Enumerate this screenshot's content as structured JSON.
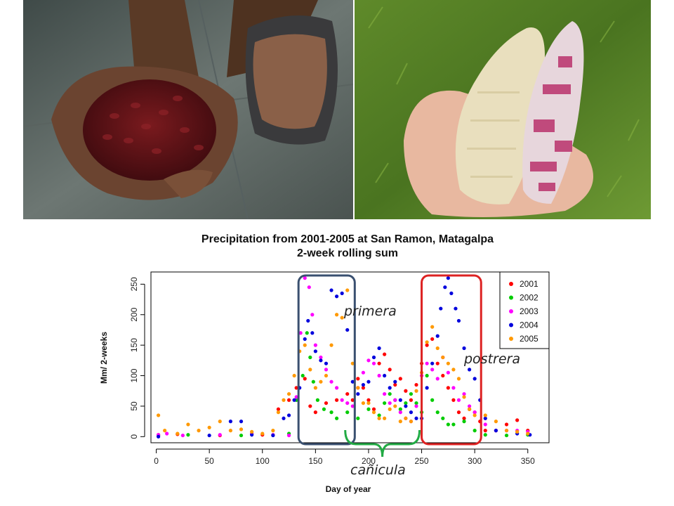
{
  "photos": [
    {
      "name": "beans-photo",
      "subject": "hands-holding-red-beans"
    },
    {
      "name": "corn-photo",
      "subject": "hand-holding-two-corn-cobs"
    }
  ],
  "chart_data": {
    "type": "scatter",
    "title": "Precipitation from 2001-2005 at San Ramon, Matagalpa",
    "subtitle": "2-week rolling sum",
    "xlabel": "Day of year",
    "ylabel": "Mm/ 2-weeks",
    "xlim": [
      -5,
      370
    ],
    "ylim": [
      -10,
      270
    ],
    "xticks": [
      0,
      50,
      100,
      150,
      200,
      250,
      300,
      350
    ],
    "yticks": [
      0,
      50,
      100,
      150,
      200,
      250
    ],
    "grid": false,
    "legend_position": "top-right",
    "series": [
      {
        "name": "2001",
        "color": "#ff0000",
        "points": [
          [
            2,
            3
          ],
          [
            20,
            4
          ],
          [
            60,
            2
          ],
          [
            100,
            3
          ],
          [
            115,
            45
          ],
          [
            125,
            60
          ],
          [
            132,
            80
          ],
          [
            140,
            95
          ],
          [
            145,
            50
          ],
          [
            150,
            40
          ],
          [
            160,
            55
          ],
          [
            170,
            60
          ],
          [
            180,
            70
          ],
          [
            185,
            60
          ],
          [
            190,
            95
          ],
          [
            195,
            80
          ],
          [
            200,
            60
          ],
          [
            205,
            45
          ],
          [
            210,
            120
          ],
          [
            215,
            135
          ],
          [
            220,
            110
          ],
          [
            225,
            85
          ],
          [
            230,
            95
          ],
          [
            235,
            75
          ],
          [
            240,
            60
          ],
          [
            245,
            85
          ],
          [
            250,
            120
          ],
          [
            255,
            150
          ],
          [
            260,
            160
          ],
          [
            265,
            120
          ],
          [
            270,
            100
          ],
          [
            275,
            80
          ],
          [
            280,
            60
          ],
          [
            285,
            40
          ],
          [
            290,
            30
          ],
          [
            295,
            45
          ],
          [
            300,
            40
          ],
          [
            305,
            25
          ],
          [
            310,
            10
          ],
          [
            320,
            10
          ],
          [
            330,
            20
          ],
          [
            340,
            27
          ],
          [
            350,
            10
          ]
        ]
      },
      {
        "name": "2002",
        "color": "#00cc00",
        "points": [
          [
            2,
            2
          ],
          [
            30,
            3
          ],
          [
            80,
            2
          ],
          [
            110,
            3
          ],
          [
            125,
            5
          ],
          [
            132,
            60
          ],
          [
            138,
            100
          ],
          [
            142,
            170
          ],
          [
            145,
            130
          ],
          [
            148,
            90
          ],
          [
            152,
            60
          ],
          [
            158,
            45
          ],
          [
            165,
            40
          ],
          [
            170,
            30
          ],
          [
            180,
            40
          ],
          [
            190,
            30
          ],
          [
            200,
            45
          ],
          [
            210,
            35
          ],
          [
            215,
            55
          ],
          [
            220,
            70
          ],
          [
            225,
            60
          ],
          [
            230,
            45
          ],
          [
            235,
            55
          ],
          [
            240,
            70
          ],
          [
            245,
            55
          ],
          [
            250,
            40
          ],
          [
            255,
            100
          ],
          [
            260,
            60
          ],
          [
            265,
            40
          ],
          [
            270,
            30
          ],
          [
            275,
            20
          ],
          [
            280,
            20
          ],
          [
            290,
            25
          ],
          [
            300,
            10
          ],
          [
            310,
            3
          ],
          [
            330,
            2
          ],
          [
            350,
            3
          ]
        ]
      },
      {
        "name": "2003",
        "color": "#ff00ff",
        "points": [
          [
            2,
            3
          ],
          [
            10,
            5
          ],
          [
            25,
            2
          ],
          [
            60,
            3
          ],
          [
            90,
            5
          ],
          [
            110,
            3
          ],
          [
            125,
            2
          ],
          [
            132,
            65
          ],
          [
            136,
            170
          ],
          [
            140,
            260
          ],
          [
            144,
            245
          ],
          [
            147,
            200
          ],
          [
            150,
            150
          ],
          [
            155,
            130
          ],
          [
            160,
            110
          ],
          [
            165,
            90
          ],
          [
            170,
            80
          ],
          [
            175,
            60
          ],
          [
            180,
            55
          ],
          [
            185,
            50
          ],
          [
            190,
            80
          ],
          [
            195,
            105
          ],
          [
            200,
            125
          ],
          [
            205,
            120
          ],
          [
            210,
            100
          ],
          [
            215,
            70
          ],
          [
            220,
            55
          ],
          [
            225,
            60
          ],
          [
            230,
            40
          ],
          [
            235,
            30
          ],
          [
            240,
            25
          ],
          [
            245,
            50
          ],
          [
            250,
            100
          ],
          [
            255,
            120
          ],
          [
            260,
            110
          ],
          [
            265,
            95
          ],
          [
            270,
            130
          ],
          [
            275,
            105
          ],
          [
            280,
            80
          ],
          [
            285,
            60
          ],
          [
            290,
            70
          ],
          [
            295,
            50
          ],
          [
            300,
            40
          ],
          [
            310,
            20
          ],
          [
            320,
            10
          ],
          [
            330,
            10
          ],
          [
            340,
            10
          ],
          [
            350,
            8
          ]
        ]
      },
      {
        "name": "2004",
        "color": "#0000dd",
        "points": [
          [
            2,
            0
          ],
          [
            50,
            2
          ],
          [
            70,
            25
          ],
          [
            80,
            25
          ],
          [
            90,
            3
          ],
          [
            110,
            2
          ],
          [
            120,
            30
          ],
          [
            125,
            35
          ],
          [
            130,
            60
          ],
          [
            135,
            80
          ],
          [
            140,
            160
          ],
          [
            143,
            190
          ],
          [
            147,
            170
          ],
          [
            150,
            140
          ],
          [
            155,
            125
          ],
          [
            160,
            120
          ],
          [
            165,
            240
          ],
          [
            170,
            230
          ],
          [
            175,
            235
          ],
          [
            180,
            175
          ],
          [
            185,
            90
          ],
          [
            190,
            70
          ],
          [
            195,
            85
          ],
          [
            200,
            90
          ],
          [
            205,
            130
          ],
          [
            210,
            145
          ],
          [
            215,
            100
          ],
          [
            220,
            80
          ],
          [
            225,
            90
          ],
          [
            230,
            60
          ],
          [
            235,
            50
          ],
          [
            240,
            40
          ],
          [
            245,
            30
          ],
          [
            250,
            30
          ],
          [
            255,
            80
          ],
          [
            260,
            120
          ],
          [
            265,
            165
          ],
          [
            268,
            210
          ],
          [
            272,
            245
          ],
          [
            275,
            260
          ],
          [
            278,
            235
          ],
          [
            282,
            210
          ],
          [
            285,
            190
          ],
          [
            290,
            145
          ],
          [
            295,
            110
          ],
          [
            300,
            95
          ],
          [
            305,
            60
          ],
          [
            310,
            30
          ],
          [
            320,
            10
          ],
          [
            340,
            5
          ],
          [
            352,
            3
          ]
        ]
      },
      {
        "name": "2005",
        "color": "#ff9900",
        "points": [
          [
            2,
            35
          ],
          [
            8,
            10
          ],
          [
            20,
            5
          ],
          [
            30,
            20
          ],
          [
            40,
            10
          ],
          [
            50,
            15
          ],
          [
            60,
            25
          ],
          [
            70,
            10
          ],
          [
            80,
            12
          ],
          [
            90,
            8
          ],
          [
            100,
            5
          ],
          [
            110,
            10
          ],
          [
            115,
            40
          ],
          [
            120,
            60
          ],
          [
            125,
            70
          ],
          [
            130,
            100
          ],
          [
            135,
            140
          ],
          [
            140,
            150
          ],
          [
            145,
            110
          ],
          [
            150,
            80
          ],
          [
            155,
            90
          ],
          [
            160,
            100
          ],
          [
            165,
            150
          ],
          [
            170,
            200
          ],
          [
            175,
            195
          ],
          [
            180,
            240
          ],
          [
            185,
            120
          ],
          [
            190,
            80
          ],
          [
            195,
            55
          ],
          [
            200,
            55
          ],
          [
            205,
            40
          ],
          [
            210,
            30
          ],
          [
            215,
            30
          ],
          [
            220,
            45
          ],
          [
            225,
            50
          ],
          [
            230,
            25
          ],
          [
            235,
            30
          ],
          [
            240,
            25
          ],
          [
            245,
            75
          ],
          [
            250,
            105
          ],
          [
            255,
            155
          ],
          [
            260,
            180
          ],
          [
            265,
            145
          ],
          [
            270,
            130
          ],
          [
            275,
            120
          ],
          [
            280,
            110
          ],
          [
            285,
            95
          ],
          [
            290,
            65
          ],
          [
            295,
            45
          ],
          [
            300,
            35
          ],
          [
            310,
            35
          ],
          [
            320,
            25
          ],
          [
            330,
            10
          ],
          [
            340,
            8
          ],
          [
            350,
            5
          ]
        ]
      }
    ],
    "annotations": [
      {
        "label": "primera",
        "box_color": "#3a5070",
        "x_range": [
          134,
          187
        ]
      },
      {
        "label": "postrera",
        "box_color": "#dd2222",
        "x_range": [
          250,
          306
        ]
      },
      {
        "label": "cañicula",
        "brace_color": "#22aa44",
        "x_range": [
          178,
          248
        ]
      }
    ]
  }
}
